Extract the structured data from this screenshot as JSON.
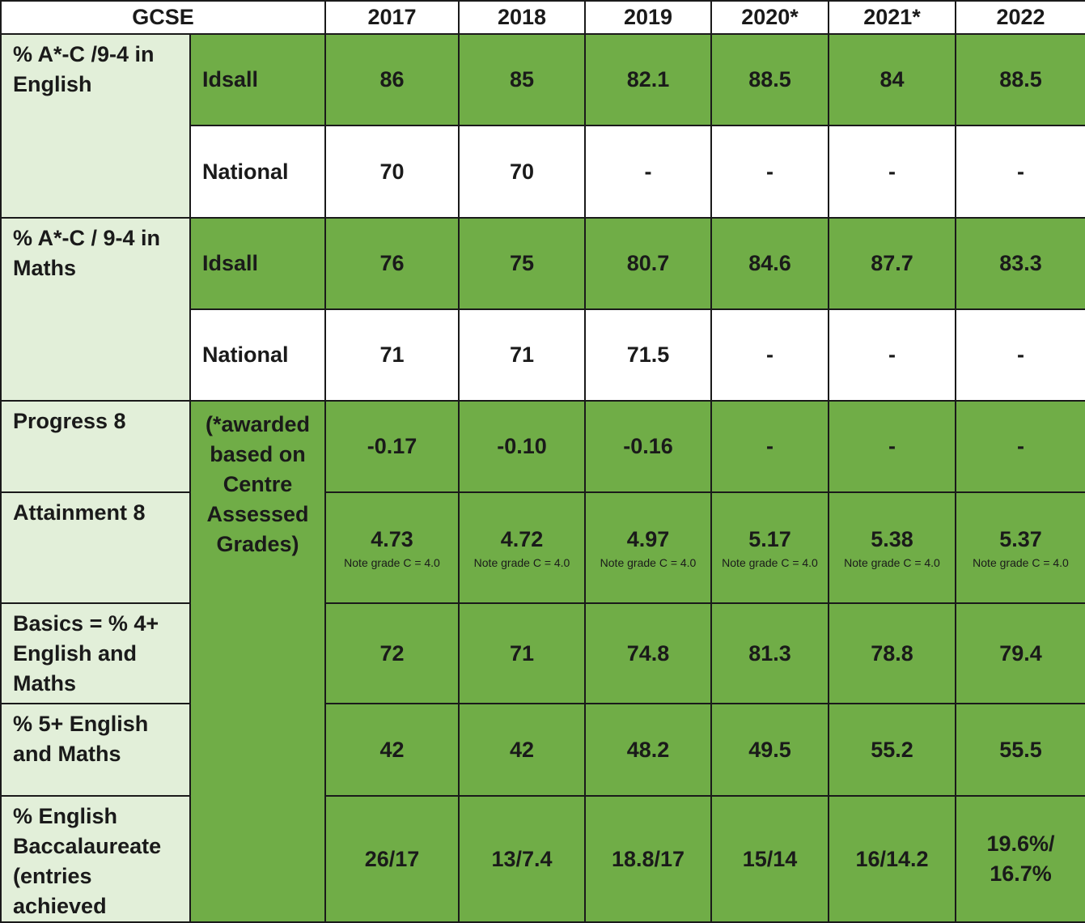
{
  "header": {
    "title": "GCSE",
    "years": [
      "2017",
      "2018",
      "2019",
      "2020*",
      "2021*",
      "2022"
    ]
  },
  "english": {
    "label": "% A*-C /9-4 in English",
    "idsall_label": "Idsall",
    "idsall": [
      "86",
      "85",
      "82.1",
      "88.5",
      "84",
      "88.5"
    ],
    "national_label": "National",
    "national": [
      "70",
      "70",
      "-",
      "-",
      "-",
      "-"
    ]
  },
  "maths": {
    "label": "% A*-C / 9-4 in Maths",
    "idsall_label": "Idsall",
    "idsall": [
      "76",
      "75",
      "80.7",
      "84.6",
      "87.7",
      "83.3"
    ],
    "national_label": "National",
    "national": [
      "71",
      "71",
      "71.5",
      "-",
      "-",
      "-"
    ]
  },
  "centre_note": "(*awarded based on Centre Assessed Grades)",
  "progress8": {
    "label": "Progress 8",
    "values": [
      "-0.17",
      "-0.10",
      "-0.16",
      "-",
      "-",
      "-"
    ]
  },
  "attainment8": {
    "label": "Attainment 8",
    "values": [
      "4.73",
      "4.72",
      "4.97",
      "5.17",
      "5.38",
      "5.37"
    ],
    "note": "Note grade C = 4.0"
  },
  "basics": {
    "label": "Basics = % 4+ English and Maths",
    "values": [
      "72",
      "71",
      "74.8",
      "81.3",
      "78.8",
      "79.4"
    ]
  },
  "five_plus": {
    "label": "% 5+ English and Maths",
    "values": [
      "42",
      "42",
      "48.2",
      "49.5",
      "55.2",
      "55.5"
    ]
  },
  "ebacc": {
    "label": "% English Baccalaureate (entries achieved",
    "values": [
      "26/17",
      "13/7.4",
      "18.8/17",
      "15/14",
      "16/14.2",
      "19.6%/ 16.7%"
    ]
  },
  "colors": {
    "green": "#70ad47",
    "light_green": "#e2efd9",
    "white": "#ffffff",
    "border": "#1a1a1a"
  }
}
